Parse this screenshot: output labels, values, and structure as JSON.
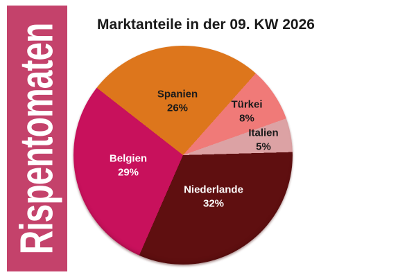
{
  "banner": {
    "label": "Rispentomaten",
    "bg_color": "#C4426B",
    "text_color": "#FFFFFF"
  },
  "title": "Marktanteile in der 09. KW 2026",
  "chart_data": {
    "type": "pie",
    "title": "Marktanteile in der 09. KW 2026",
    "start_angle_deg": -52,
    "direction": "clockwise",
    "legend": "none",
    "labels_on_slices": true,
    "slices": [
      {
        "label": "Spanien",
        "value": 26,
        "pct_label": "26%",
        "color": "#DD761C",
        "text_color": "#1A1A1A"
      },
      {
        "label": "Türkei",
        "value": 8,
        "pct_label": "8%",
        "color": "#F07A78",
        "text_color": "#1A1A1A"
      },
      {
        "label": "Italien",
        "value": 5,
        "pct_label": "5%",
        "color": "#DCA2A4",
        "text_color": "#1A1A1A"
      },
      {
        "label": "Niederlande",
        "value": 32,
        "pct_label": "32%",
        "color": "#5F0F10",
        "text_color": "#FFFFFF"
      },
      {
        "label": "Belgien",
        "value": 29,
        "pct_label": "29%",
        "color": "#C8115C",
        "text_color": "#FFFFFF"
      }
    ]
  }
}
